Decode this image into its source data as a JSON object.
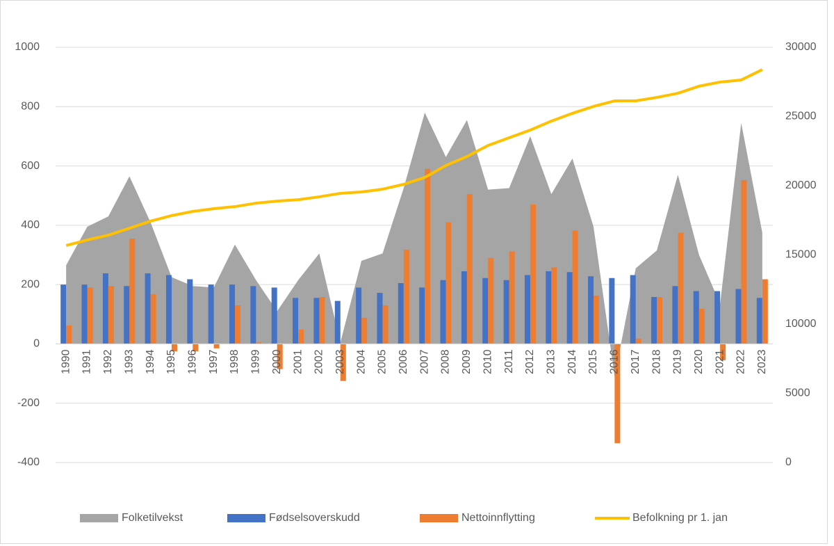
{
  "chart_data": {
    "type": "combo",
    "categories": [
      "1990",
      "1991",
      "1992",
      "1993",
      "1994",
      "1995",
      "1996",
      "1997",
      "1998",
      "1999",
      "2000",
      "2001",
      "2002",
      "2003",
      "2004",
      "2005",
      "2006",
      "2007",
      "2008",
      "2009",
      "2010",
      "2011",
      "2012",
      "2013",
      "2014",
      "2015",
      "2016",
      "2017",
      "2018",
      "2019",
      "2020",
      "2021",
      "2022",
      "2023"
    ],
    "series": [
      {
        "name": "Folketilvekst",
        "kind": "area",
        "color": "#a5a5a5",
        "values": [
          265,
          395,
          430,
          565,
          410,
          225,
          195,
          190,
          335,
          215,
          110,
          215,
          305,
          5,
          280,
          305,
          525,
          780,
          630,
          755,
          520,
          525,
          700,
          505,
          625,
          395,
          -110,
          255,
          315,
          570,
          300,
          135,
          745,
          375
        ]
      },
      {
        "name": "Fødselsoverskudd",
        "kind": "bar",
        "color": "#4472c4",
        "values": [
          200,
          200,
          238,
          195,
          238,
          232,
          218,
          200,
          200,
          195,
          190,
          155,
          155,
          145,
          190,
          172,
          205,
          190,
          215,
          245,
          222,
          215,
          232,
          245,
          242,
          228,
          222,
          232,
          158,
          195,
          178,
          178,
          185,
          155
        ]
      },
      {
        "name": "Nettoinnflytting",
        "kind": "bar",
        "color": "#ed7d31",
        "values": [
          62,
          190,
          195,
          355,
          168,
          -25,
          -25,
          -15,
          130,
          5,
          -85,
          48,
          158,
          -125,
          88,
          130,
          318,
          590,
          410,
          505,
          290,
          312,
          470,
          258,
          382,
          163,
          -335,
          18,
          158,
          375,
          118,
          -55,
          552,
          218
        ]
      },
      {
        "name": "Befolkning pr 1. jan",
        "kind": "line",
        "axis": "y2",
        "color": "#ffc000",
        "values": [
          15680,
          16080,
          16430,
          16930,
          17440,
          17840,
          18140,
          18340,
          18490,
          18740,
          18890,
          18990,
          19200,
          19450,
          19550,
          19750,
          20100,
          20600,
          21460,
          22110,
          22910,
          23470,
          24020,
          24670,
          25230,
          25730,
          26130,
          26130,
          26380,
          26680,
          27190,
          27490,
          27640,
          28390
        ]
      }
    ],
    "ylim": [
      -400,
      1000
    ],
    "yticks": [
      -400,
      -200,
      0,
      200,
      400,
      600,
      800,
      1000
    ],
    "y2lim": [
      0,
      30000
    ],
    "y2ticks": [
      0,
      5000,
      10000,
      15000,
      20000,
      25000,
      30000
    ],
    "grid": true,
    "legend": "bottom"
  }
}
